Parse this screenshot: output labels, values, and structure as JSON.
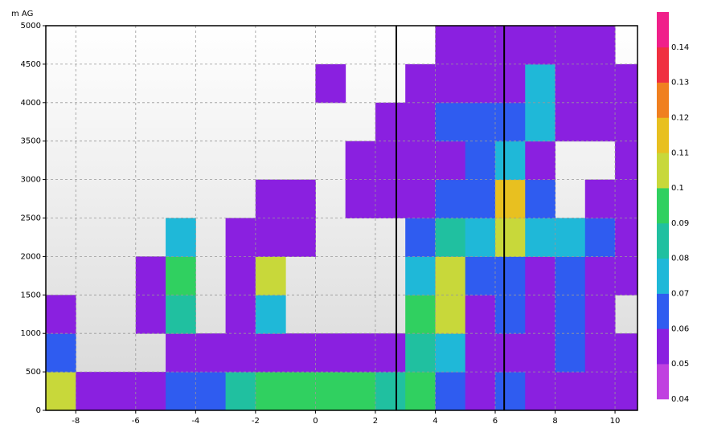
{
  "chart_data": {
    "type": "heatmap",
    "ylabel": "m AG",
    "x": [
      -8.5,
      -7.5,
      -6.5,
      -5.5,
      -4.5,
      -3.5,
      -2.5,
      -1.5,
      -0.5,
      0.5,
      1.5,
      2.5,
      3.5,
      4.5,
      5.5,
      6.5,
      7.5,
      8.5,
      9.5,
      10.5
    ],
    "y": [
      250,
      750,
      1250,
      1750,
      2250,
      2750,
      3250,
      3750,
      4250,
      4750
    ],
    "z": [
      [
        0.1,
        0.05,
        0.05,
        0.05,
        0.06,
        0.06,
        0.08,
        0.09,
        0.09,
        0.09,
        0.09,
        0.08,
        0.09,
        0.06,
        0.05,
        0.06,
        0.05,
        0.05,
        0.05,
        0.05
      ],
      [
        0.06,
        null,
        null,
        null,
        0.05,
        0.05,
        0.05,
        0.05,
        0.05,
        0.05,
        0.05,
        0.05,
        0.08,
        0.07,
        0.05,
        0.05,
        0.05,
        0.06,
        0.05,
        0.05
      ],
      [
        0.05,
        null,
        null,
        0.05,
        0.08,
        null,
        0.05,
        0.07,
        null,
        null,
        null,
        null,
        0.09,
        0.1,
        0.05,
        0.06,
        0.05,
        0.06,
        0.05,
        null
      ],
      [
        null,
        null,
        null,
        0.05,
        0.09,
        null,
        0.05,
        0.1,
        null,
        null,
        null,
        null,
        0.07,
        0.1,
        0.06,
        0.06,
        0.05,
        0.06,
        0.05,
        0.05
      ],
      [
        null,
        null,
        null,
        null,
        0.07,
        null,
        0.05,
        0.05,
        0.05,
        null,
        null,
        null,
        0.06,
        0.08,
        0.07,
        0.1,
        0.07,
        0.07,
        0.06,
        0.05
      ],
      [
        null,
        null,
        null,
        null,
        null,
        null,
        null,
        0.05,
        0.05,
        null,
        0.05,
        0.05,
        0.05,
        0.06,
        0.06,
        0.11,
        0.06,
        null,
        0.05,
        0.05
      ],
      [
        null,
        null,
        null,
        null,
        null,
        null,
        null,
        null,
        null,
        null,
        0.05,
        0.05,
        0.05,
        0.05,
        0.06,
        0.07,
        0.05,
        null,
        null,
        0.05
      ],
      [
        null,
        null,
        null,
        null,
        null,
        null,
        null,
        null,
        null,
        null,
        null,
        0.05,
        0.05,
        0.06,
        0.06,
        0.06,
        0.07,
        0.05,
        0.05,
        0.05
      ],
      [
        null,
        null,
        null,
        null,
        null,
        null,
        null,
        null,
        null,
        0.05,
        null,
        null,
        0.05,
        0.05,
        0.05,
        0.05,
        0.07,
        0.05,
        0.05,
        0.05
      ],
      [
        null,
        null,
        null,
        null,
        null,
        null,
        null,
        null,
        null,
        null,
        null,
        null,
        null,
        0.05,
        0.05,
        0.05,
        0.05,
        0.05,
        0.05,
        null
      ]
    ],
    "xlim": [
      -9,
      10.75
    ],
    "xticks": [
      -8,
      -6,
      -4,
      -2,
      0,
      2,
      4,
      6,
      8,
      10
    ],
    "ylim": [
      0,
      5000
    ],
    "yticks": [
      0,
      500,
      1000,
      1500,
      2000,
      2500,
      3000,
      3500,
      4000,
      4500,
      5000
    ],
    "grid": true,
    "vlines": [
      2.7,
      6.3
    ],
    "levels": [
      0.04,
      0.05,
      0.06,
      0.07,
      0.08,
      0.09,
      0.1,
      0.11,
      0.12,
      0.13,
      0.14,
      0.15
    ],
    "colors": [
      "#c040e0",
      "#8a20e0",
      "#2f5cf0",
      "#1fb8d8",
      "#20c0a0",
      "#30d060",
      "#c8d83a",
      "#e8c020",
      "#f08020",
      "#f03040",
      "#f0208a"
    ],
    "colorbar_ticks": [
      0.04,
      0.05,
      0.06,
      0.07,
      0.08,
      0.09,
      0.1,
      0.11,
      0.12,
      0.13,
      0.14
    ]
  }
}
